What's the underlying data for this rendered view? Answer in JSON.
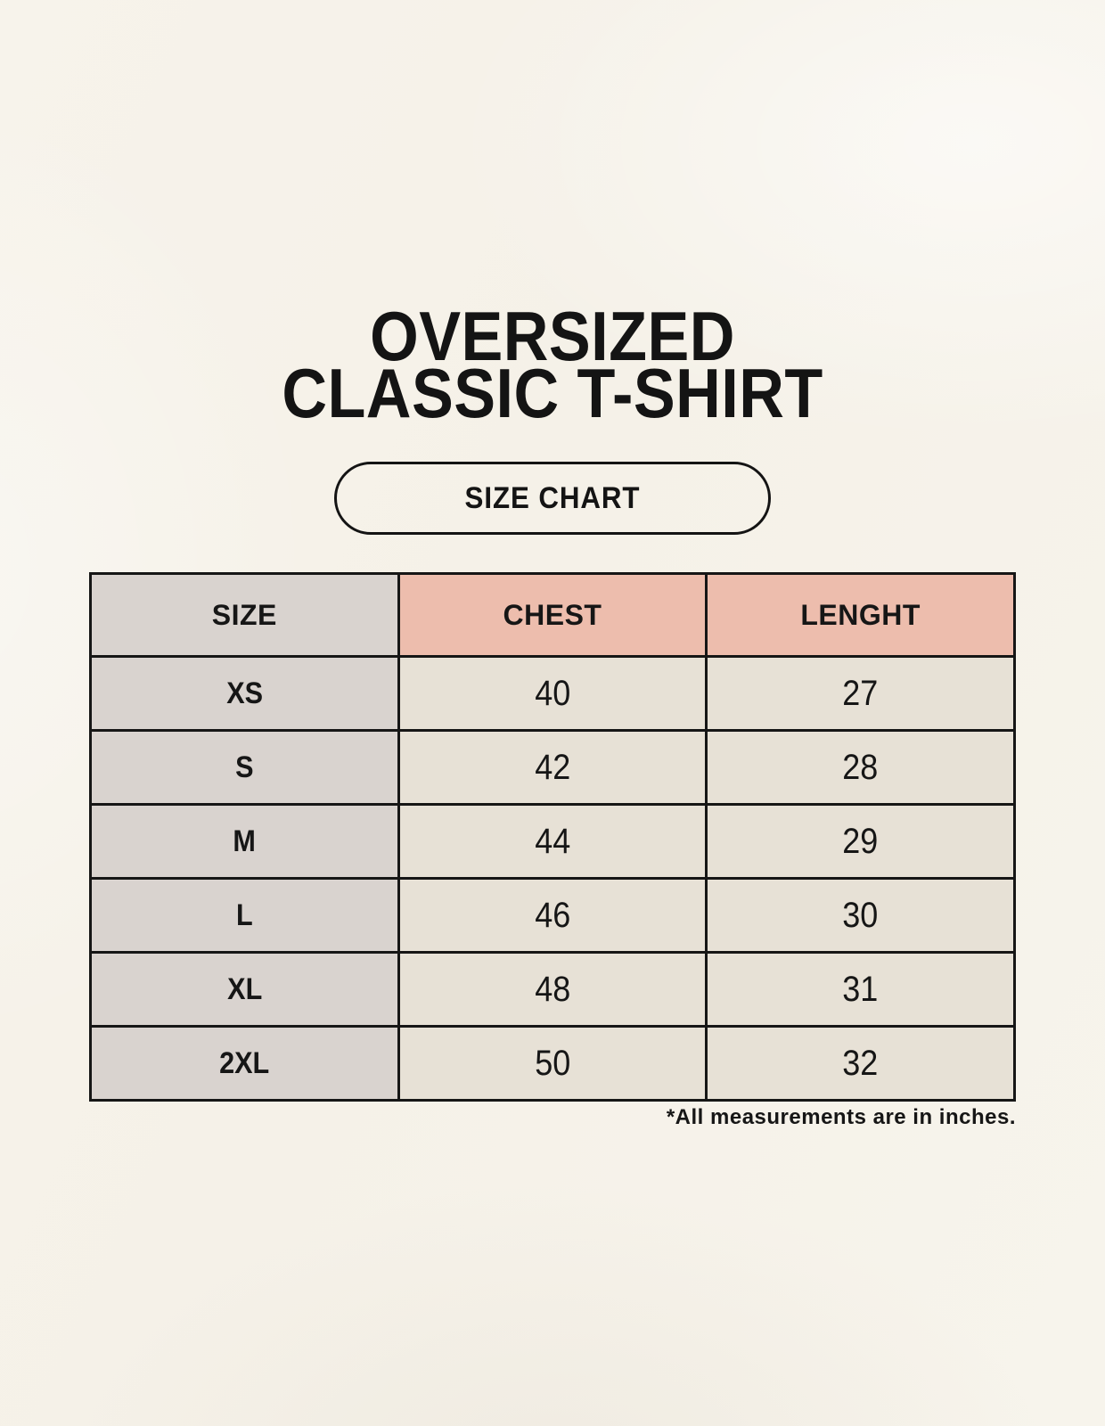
{
  "page": {
    "title_line1": "OVERSIZED",
    "title_line2": "CLASSIC T-SHIRT",
    "size_chart_label": "SIZE CHART",
    "footnote": "*All measurements are in inches."
  },
  "chart_data": {
    "type": "table",
    "title": "OVERSIZED CLASSIC T-SHIRT",
    "subtitle": "SIZE CHART",
    "columns": [
      "SIZE",
      "CHEST",
      "LENGHT"
    ],
    "rows": [
      {
        "size": "XS",
        "chest": 40,
        "length": 27
      },
      {
        "size": "S",
        "chest": 42,
        "length": 28
      },
      {
        "size": "M",
        "chest": 44,
        "length": 29
      },
      {
        "size": "L",
        "chest": 46,
        "length": 30
      },
      {
        "size": "XL",
        "chest": 48,
        "length": 31
      },
      {
        "size": "2XL",
        "chest": 50,
        "length": 32
      }
    ],
    "units": "inches",
    "footnote": "*All measurements are in inches.",
    "layout": {
      "grid": "full-borders",
      "accent_header_columns": [
        "CHEST",
        "LENGHT"
      ],
      "first_column_shaded": true
    }
  },
  "colors": {
    "background": "#f6f2ea",
    "cell_gray": "#d9d3cf",
    "cell_accent_pink": "#edbdad",
    "cell_beige": "#e7e1d6",
    "border": "#161616",
    "text": "#141414"
  }
}
